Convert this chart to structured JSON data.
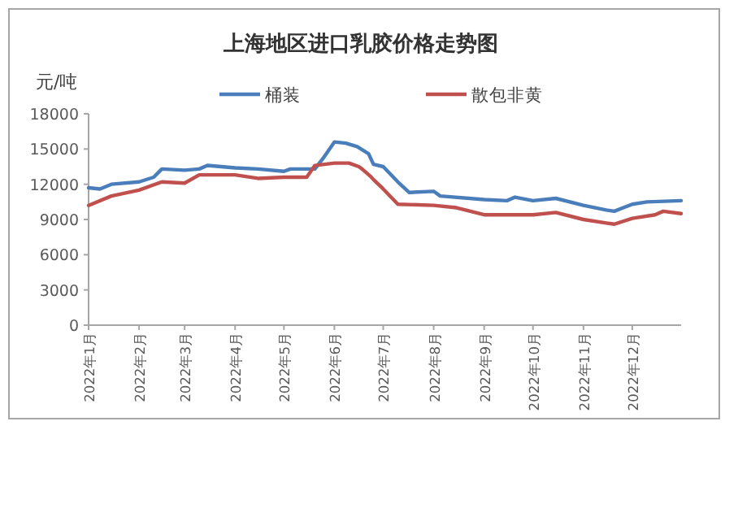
{
  "chart_data": {
    "type": "line",
    "title": "上海地区进口乳胶价格走势图",
    "ylabel": "元/吨",
    "legend": "top",
    "marker": "none",
    "line_style": "solid",
    "xlim": [
      "2022-01-01",
      "2022-12-31"
    ],
    "xticks": [
      {
        "value": "2022-01-01",
        "label": "2022年1月"
      },
      {
        "value": "2022-02-01",
        "label": "2022年2月"
      },
      {
        "value": "2022-03-01",
        "label": "2022年3月"
      },
      {
        "value": "2022-04-01",
        "label": "2022年4月"
      },
      {
        "value": "2022-05-01",
        "label": "2022年5月"
      },
      {
        "value": "2022-06-01",
        "label": "2022年6月"
      },
      {
        "value": "2022-07-01",
        "label": "2022年7月"
      },
      {
        "value": "2022-08-01",
        "label": "2022年8月"
      },
      {
        "value": "2022-09-01",
        "label": "2022年9月"
      },
      {
        "value": "2022-10-01",
        "label": "2022年10月"
      },
      {
        "value": "2022-11-01",
        "label": "2022年11月"
      },
      {
        "value": "2022-12-01",
        "label": "2022年12月"
      }
    ],
    "ylim": [
      0,
      18000
    ],
    "yticks": [
      0,
      3000,
      6000,
      9000,
      12000,
      15000,
      18000
    ],
    "series": [
      {
        "name": "桶装",
        "color": "#4a7ebb",
        "x": [
          "2022-01-01",
          "2022-01-08",
          "2022-01-15",
          "2022-02-01",
          "2022-02-10",
          "2022-02-15",
          "2022-03-01",
          "2022-03-10",
          "2022-03-15",
          "2022-04-01",
          "2022-04-15",
          "2022-05-01",
          "2022-05-05",
          "2022-05-20",
          "2022-05-25",
          "2022-06-01",
          "2022-06-08",
          "2022-06-15",
          "2022-06-22",
          "2022-06-25",
          "2022-07-01",
          "2022-07-10",
          "2022-07-17",
          "2022-08-01",
          "2022-08-05",
          "2022-09-01",
          "2022-09-15",
          "2022-09-20",
          "2022-10-01",
          "2022-10-15",
          "2022-11-01",
          "2022-11-15",
          "2022-11-20",
          "2022-12-01",
          "2022-12-10",
          "2022-12-31"
        ],
        "values": [
          11700,
          11600,
          12000,
          12200,
          12600,
          13300,
          13200,
          13300,
          13600,
          13400,
          13300,
          13100,
          13300,
          13300,
          14200,
          15600,
          15500,
          15200,
          14600,
          13700,
          13500,
          12200,
          11300,
          11400,
          11000,
          10700,
          10600,
          10900,
          10600,
          10800,
          10200,
          9800,
          9700,
          10300,
          10500,
          10600
        ]
      },
      {
        "name": "散包非黄",
        "color": "#c0504d",
        "x": [
          "2022-01-01",
          "2022-01-15",
          "2022-02-01",
          "2022-02-15",
          "2022-03-01",
          "2022-03-10",
          "2022-04-01",
          "2022-04-15",
          "2022-05-01",
          "2022-05-15",
          "2022-05-20",
          "2022-06-01",
          "2022-06-10",
          "2022-06-16",
          "2022-06-18",
          "2022-06-23",
          "2022-06-25",
          "2022-07-01",
          "2022-07-10",
          "2022-08-01",
          "2022-08-15",
          "2022-09-01",
          "2022-09-15",
          "2022-10-01",
          "2022-10-15",
          "2022-11-01",
          "2022-11-15",
          "2022-11-20",
          "2022-12-01",
          "2022-12-15",
          "2022-12-20",
          "2022-12-31"
        ],
        "values": [
          10200,
          11000,
          11500,
          12200,
          12100,
          12800,
          12800,
          12500,
          12600,
          12600,
          13600,
          13800,
          13800,
          13500,
          13300,
          12700,
          12400,
          11600,
          10300,
          10200,
          10000,
          9400,
          9400,
          9400,
          9600,
          9000,
          8700,
          8600,
          9100,
          9400,
          9700,
          9500
        ]
      }
    ]
  }
}
